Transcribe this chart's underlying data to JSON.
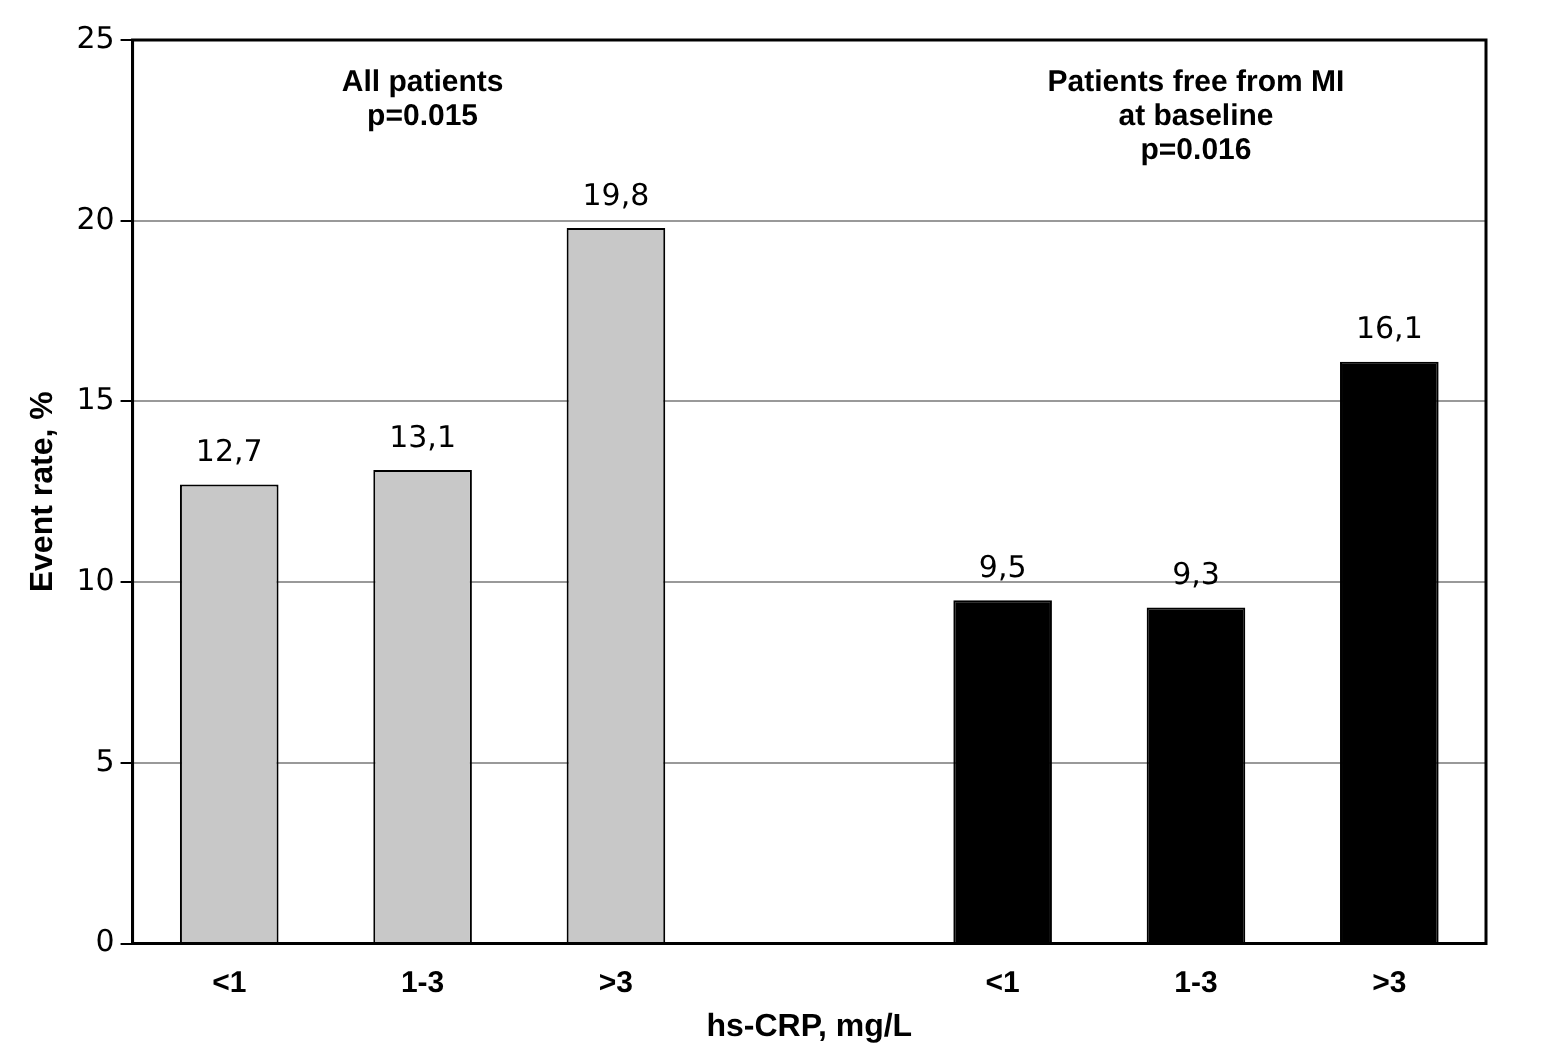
{
  "chart_data": {
    "type": "bar",
    "xlabel": "hs-CRP, mg/L",
    "ylabel": "Event rate, %",
    "categories": [
      "<1",
      "1-3",
      ">3",
      null,
      "<1",
      "1-3",
      ">3"
    ],
    "series": [
      {
        "color": "#c8c8c8",
        "values": [
          12.7,
          13.1,
          19.8,
          null,
          null,
          null,
          null
        ],
        "value_labels": [
          "12,7",
          "13,1",
          "19,8",
          null,
          null,
          null,
          null
        ]
      },
      {
        "color": "#000000",
        "values": [
          null,
          null,
          null,
          null,
          9.5,
          9.3,
          16.1
        ],
        "value_labels": [
          null,
          null,
          null,
          null,
          "9,5",
          "9,3",
          "16,1"
        ]
      }
    ],
    "ylim": [
      0,
      25
    ],
    "yticks": [
      0,
      5,
      10,
      15,
      20,
      25
    ],
    "grid": "y",
    "legend": false,
    "annotations": [
      "All patients\np=0.015",
      "Patients free from MI\nat baseline\np=0.016"
    ]
  }
}
